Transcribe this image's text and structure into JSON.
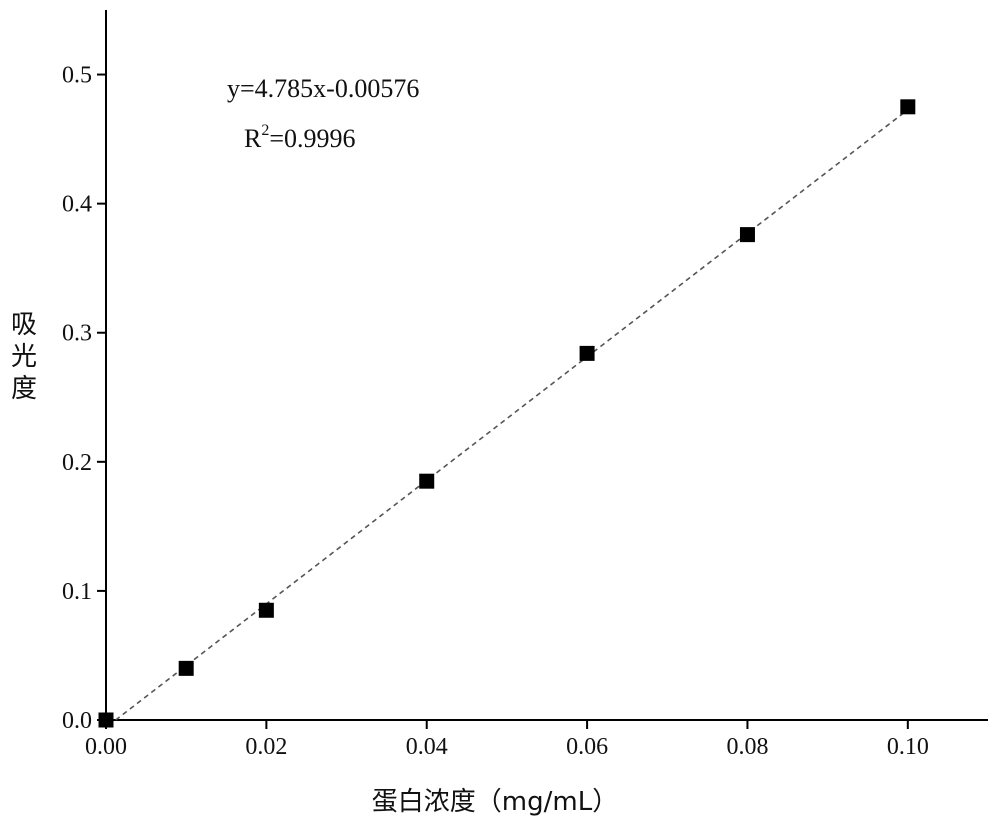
{
  "chart_data": {
    "type": "scatter",
    "title": "",
    "xlabel": "蛋白浓度（mg/mL）",
    "ylabel": "吸光度",
    "xlim": [
      0,
      0.11
    ],
    "ylim": [
      0,
      0.55
    ],
    "x_ticks": [
      0.0,
      0.02,
      0.04,
      0.06,
      0.08,
      0.1
    ],
    "x_tick_labels": [
      "0.00",
      "0.02",
      "0.04",
      "0.06",
      "0.08",
      "0.10"
    ],
    "y_ticks": [
      0.0,
      0.1,
      0.2,
      0.3,
      0.4,
      0.5
    ],
    "y_tick_labels": [
      "0.0",
      "0.1",
      "0.2",
      "0.3",
      "0.4",
      "0.5"
    ],
    "grid": false,
    "series": [
      {
        "marker": "square",
        "color": "#000000",
        "x": [
          0.0,
          0.01,
          0.02,
          0.04,
          0.06,
          0.08,
          0.1
        ],
        "y": [
          0.0,
          0.04,
          0.085,
          0.185,
          0.284,
          0.376,
          0.475
        ]
      }
    ],
    "trendline": {
      "style": "dashed",
      "color": "#555555",
      "slope": 4.785,
      "intercept": -0.00576,
      "x_range": [
        0.0,
        0.1
      ]
    },
    "annotations": {
      "equation": "y=4.785x-0.00576",
      "r2_prefix": "R",
      "r2_sup": "2",
      "r2_value": "=0.9996"
    }
  }
}
